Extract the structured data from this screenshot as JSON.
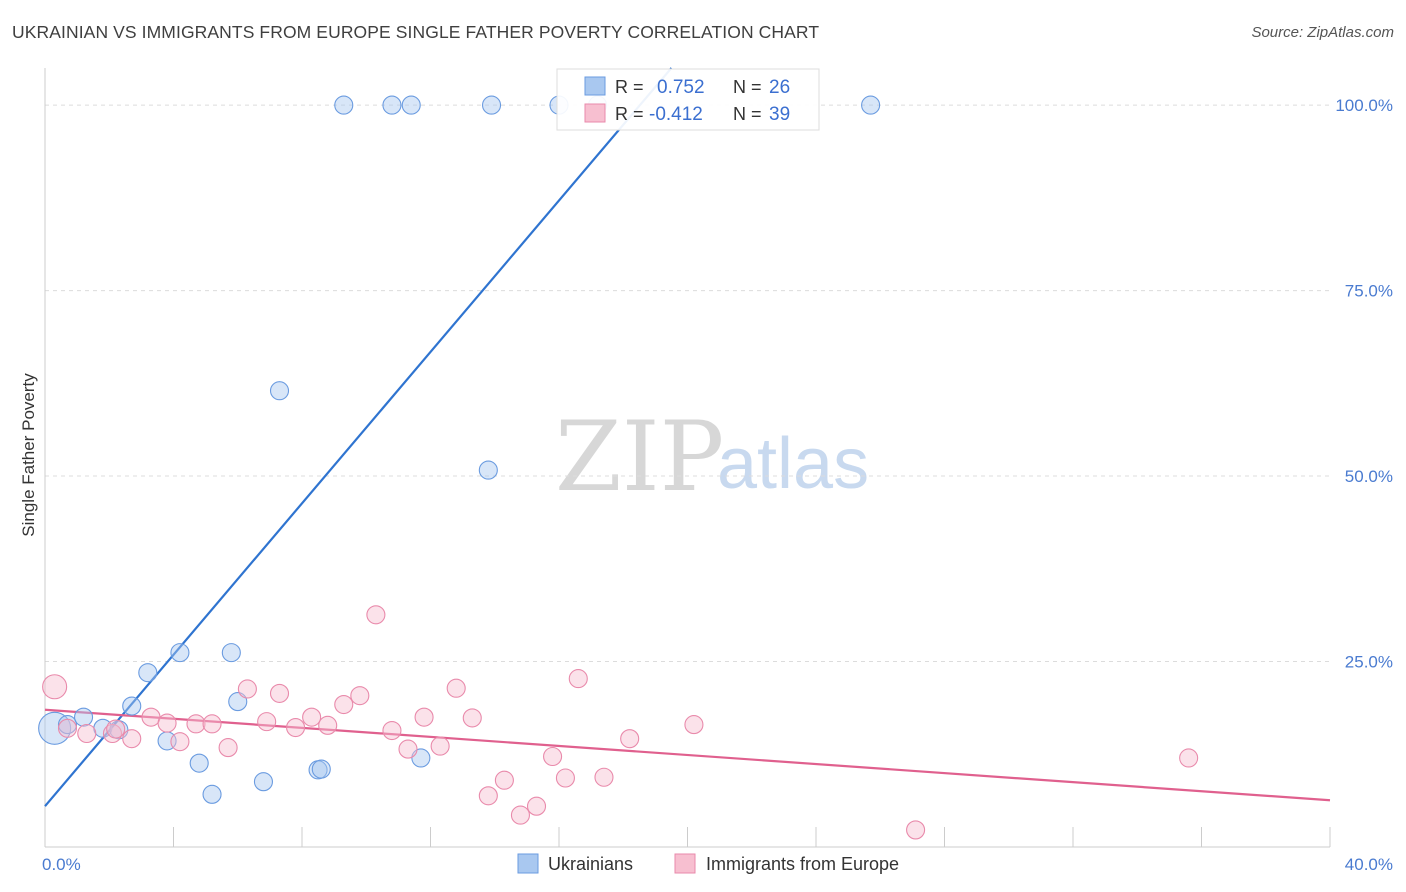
{
  "header": {
    "title": "UKRAINIAN VS IMMIGRANTS FROM EUROPE SINGLE FATHER POVERTY CORRELATION CHART",
    "source": "Source: ZipAtlas.com"
  },
  "watermark": {
    "zip": "ZIP",
    "atlas": "atlas"
  },
  "legend": {
    "r_label": "R =",
    "n_label": "N =",
    "items": [
      {
        "name": "Ukrainians",
        "r": "0.752",
        "n": "26",
        "color": "#a9c8f0",
        "stroke": "#6a9be0"
      },
      {
        "name": "Immigrants from Europe",
        "r": "-0.412",
        "n": "39",
        "color": "#f7bfd0",
        "stroke": "#e98aab"
      }
    ]
  },
  "chart_data": {
    "type": "scatter",
    "title": "UKRAINIAN VS IMMIGRANTS FROM EUROPE SINGLE FATHER POVERTY CORRELATION CHART",
    "xlabel": "",
    "ylabel": "Single Father Poverty",
    "xlim": [
      0,
      40
    ],
    "ylim": [
      0,
      105
    ],
    "x_tick_labels": [
      {
        "value": 0,
        "label": "0.0%"
      },
      {
        "value": 40,
        "label": "40.0%"
      }
    ],
    "y_tick_labels": [
      {
        "value": 25,
        "label": "25.0%"
      },
      {
        "value": 50,
        "label": "50.0%"
      },
      {
        "value": 75,
        "label": "75.0%"
      },
      {
        "value": 100,
        "label": "100.0%"
      }
    ],
    "series": [
      {
        "name": "Ukrainians",
        "color": "#a9c8f0",
        "stroke": "#6a9be0",
        "line_color": "#2f74d0",
        "trend": {
          "x0": 0,
          "y0": 5.5,
          "x1": 19.5,
          "y1": 105
        },
        "points": [
          {
            "x": 0.3,
            "y": 16,
            "size": 16
          },
          {
            "x": 0.7,
            "y": 16.5,
            "size": 9
          },
          {
            "x": 1.2,
            "y": 17.5,
            "size": 9
          },
          {
            "x": 1.8,
            "y": 16,
            "size": 9
          },
          {
            "x": 2.3,
            "y": 15.8,
            "size": 9
          },
          {
            "x": 2.7,
            "y": 19,
            "size": 9
          },
          {
            "x": 3.2,
            "y": 23.5,
            "size": 9
          },
          {
            "x": 3.8,
            "y": 14.3,
            "size": 9
          },
          {
            "x": 4.2,
            "y": 26.2,
            "size": 9
          },
          {
            "x": 4.8,
            "y": 11.3,
            "size": 9
          },
          {
            "x": 5.2,
            "y": 7.1,
            "size": 9
          },
          {
            "x": 5.8,
            "y": 26.2,
            "size": 9
          },
          {
            "x": 6.0,
            "y": 19.6,
            "size": 9
          },
          {
            "x": 6.8,
            "y": 8.8,
            "size": 9
          },
          {
            "x": 7.3,
            "y": 61.5,
            "size": 9
          },
          {
            "x": 8.5,
            "y": 10.4,
            "size": 9
          },
          {
            "x": 8.6,
            "y": 10.5,
            "size": 9
          },
          {
            "x": 9.3,
            "y": 100,
            "size": 9
          },
          {
            "x": 10.8,
            "y": 100,
            "size": 9
          },
          {
            "x": 11.4,
            "y": 100,
            "size": 9
          },
          {
            "x": 11.7,
            "y": 12,
            "size": 9
          },
          {
            "x": 13.8,
            "y": 50.8,
            "size": 9
          },
          {
            "x": 13.9,
            "y": 100,
            "size": 9
          },
          {
            "x": 16.0,
            "y": 100,
            "size": 9
          },
          {
            "x": 17.2,
            "y": 100,
            "size": 9
          },
          {
            "x": 25.7,
            "y": 100,
            "size": 9
          }
        ]
      },
      {
        "name": "Immigrants from Europe",
        "color": "#f7bfd0",
        "stroke": "#e98aab",
        "line_color": "#e0608e",
        "trend": {
          "x0": 0,
          "y0": 18.5,
          "x1": 40,
          "y1": 6.3
        },
        "points": [
          {
            "x": 0.3,
            "y": 21.6,
            "size": 12
          },
          {
            "x": 0.7,
            "y": 16,
            "size": 9
          },
          {
            "x": 2.1,
            "y": 15.3,
            "size": 9
          },
          {
            "x": 2.7,
            "y": 14.6,
            "size": 9
          },
          {
            "x": 3.3,
            "y": 17.5,
            "size": 9
          },
          {
            "x": 3.8,
            "y": 16.7,
            "size": 9
          },
          {
            "x": 4.2,
            "y": 14.2,
            "size": 9
          },
          {
            "x": 4.7,
            "y": 16.6,
            "size": 9
          },
          {
            "x": 5.2,
            "y": 16.6,
            "size": 9
          },
          {
            "x": 5.7,
            "y": 13.4,
            "size": 9
          },
          {
            "x": 6.3,
            "y": 21.3,
            "size": 9
          },
          {
            "x": 6.9,
            "y": 16.9,
            "size": 9
          },
          {
            "x": 7.3,
            "y": 20.7,
            "size": 9
          },
          {
            "x": 7.8,
            "y": 16.1,
            "size": 9
          },
          {
            "x": 8.3,
            "y": 17.5,
            "size": 9
          },
          {
            "x": 8.8,
            "y": 16.4,
            "size": 9
          },
          {
            "x": 9.3,
            "y": 19.2,
            "size": 9
          },
          {
            "x": 9.8,
            "y": 20.4,
            "size": 9
          },
          {
            "x": 10.3,
            "y": 31.3,
            "size": 9
          },
          {
            "x": 10.8,
            "y": 15.7,
            "size": 9
          },
          {
            "x": 11.3,
            "y": 13.2,
            "size": 9
          },
          {
            "x": 11.8,
            "y": 17.5,
            "size": 9
          },
          {
            "x": 12.3,
            "y": 13.6,
            "size": 9
          },
          {
            "x": 12.8,
            "y": 21.4,
            "size": 9
          },
          {
            "x": 13.3,
            "y": 17.4,
            "size": 9
          },
          {
            "x": 13.8,
            "y": 6.9,
            "size": 9
          },
          {
            "x": 14.3,
            "y": 9,
            "size": 9
          },
          {
            "x": 14.8,
            "y": 4.3,
            "size": 9
          },
          {
            "x": 15.3,
            "y": 5.5,
            "size": 9
          },
          {
            "x": 15.8,
            "y": 12.2,
            "size": 9
          },
          {
            "x": 16.2,
            "y": 9.3,
            "size": 9
          },
          {
            "x": 16.6,
            "y": 22.7,
            "size": 9
          },
          {
            "x": 17.4,
            "y": 9.4,
            "size": 9
          },
          {
            "x": 18.2,
            "y": 14.6,
            "size": 9
          },
          {
            "x": 20.2,
            "y": 16.5,
            "size": 9
          },
          {
            "x": 27.1,
            "y": 2.3,
            "size": 9
          },
          {
            "x": 35.6,
            "y": 12,
            "size": 9
          },
          {
            "x": 2.2,
            "y": 15.9,
            "size": 9
          },
          {
            "x": 1.3,
            "y": 15.3,
            "size": 9
          }
        ]
      }
    ]
  }
}
